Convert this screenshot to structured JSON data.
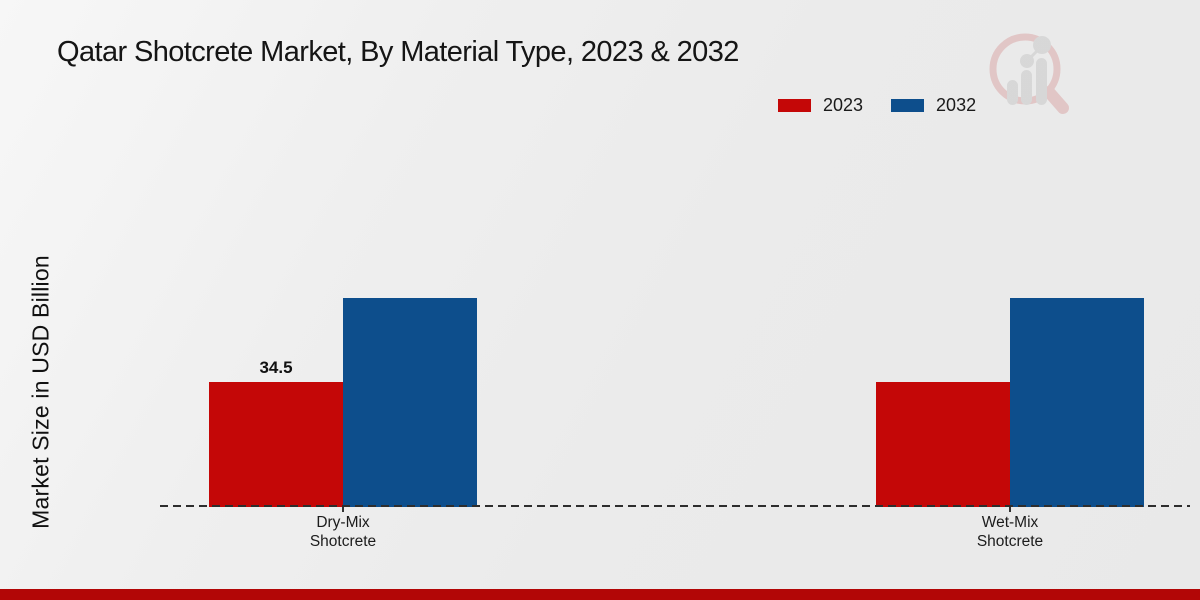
{
  "page": {
    "title": "Qatar Shotcrete Market, By Material Type, 2023 & 2032",
    "ylabel": "Market Size in USD Billion",
    "accent_red": "#c40707",
    "accent_blue": "#0d4e8c",
    "footer_color": "#b20606"
  },
  "legend": {
    "position": "top-right",
    "items": [
      {
        "label": "2023",
        "color": "#c40707"
      },
      {
        "label": "2032",
        "color": "#0d4e8c"
      }
    ]
  },
  "logo": {
    "name": "market-research-magnifier-chart-logo"
  },
  "chart_data": {
    "type": "bar",
    "categories": [
      "Dry-Mix Shotcrete",
      "Wet-Mix Shotcrete"
    ],
    "series": [
      {
        "name": "2023",
        "color": "#c40707",
        "values": [
          34.5,
          34.5
        ]
      },
      {
        "name": "2032",
        "color": "#0d4e8c",
        "values": [
          57.6,
          57.6
        ]
      }
    ],
    "data_labels": [
      {
        "series": "2023",
        "category_index": 0,
        "text": "34.5"
      }
    ],
    "title": "Qatar Shotcrete Market, By Material Type, 2023 & 2032",
    "xlabel": "",
    "ylabel": "Market Size in USD Billion",
    "ylim": [
      0,
      60
    ],
    "grid": false,
    "baseline_style": "dashed",
    "legend_position": "top-right"
  }
}
